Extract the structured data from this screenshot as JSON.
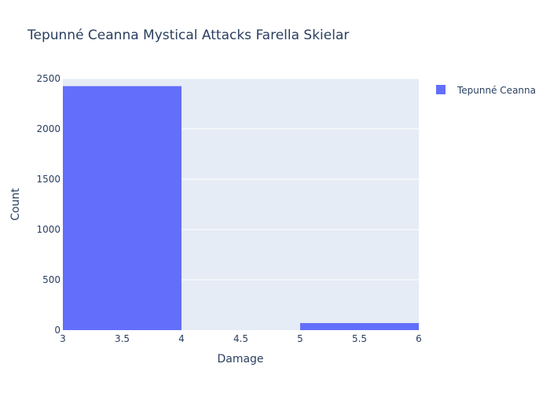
{
  "chart_data": {
    "type": "bar",
    "title": "Tepunné Ceanna Mystical Attacks Farella Skielar",
    "xlabel": "Damage",
    "ylabel": "Count",
    "xlim": [
      3,
      6
    ],
    "ylim": [
      0,
      2500
    ],
    "x_ticks": [
      "3",
      "3.5",
      "4",
      "4.5",
      "5",
      "5.5",
      "6"
    ],
    "y_ticks": [
      "0",
      "500",
      "1000",
      "1500",
      "2000",
      "2500"
    ],
    "bins": [
      {
        "x0": 3,
        "x1": 4,
        "count": 2425
      },
      {
        "x0": 4,
        "x1": 5,
        "count": 0
      },
      {
        "x0": 5,
        "x1": 6,
        "count": 70
      }
    ],
    "series": [
      {
        "name": "Tepunné Ceanna",
        "color": "#636efa"
      }
    ],
    "legend_position": "top-right",
    "grid": true,
    "plot_background": "#e5ecf6"
  }
}
